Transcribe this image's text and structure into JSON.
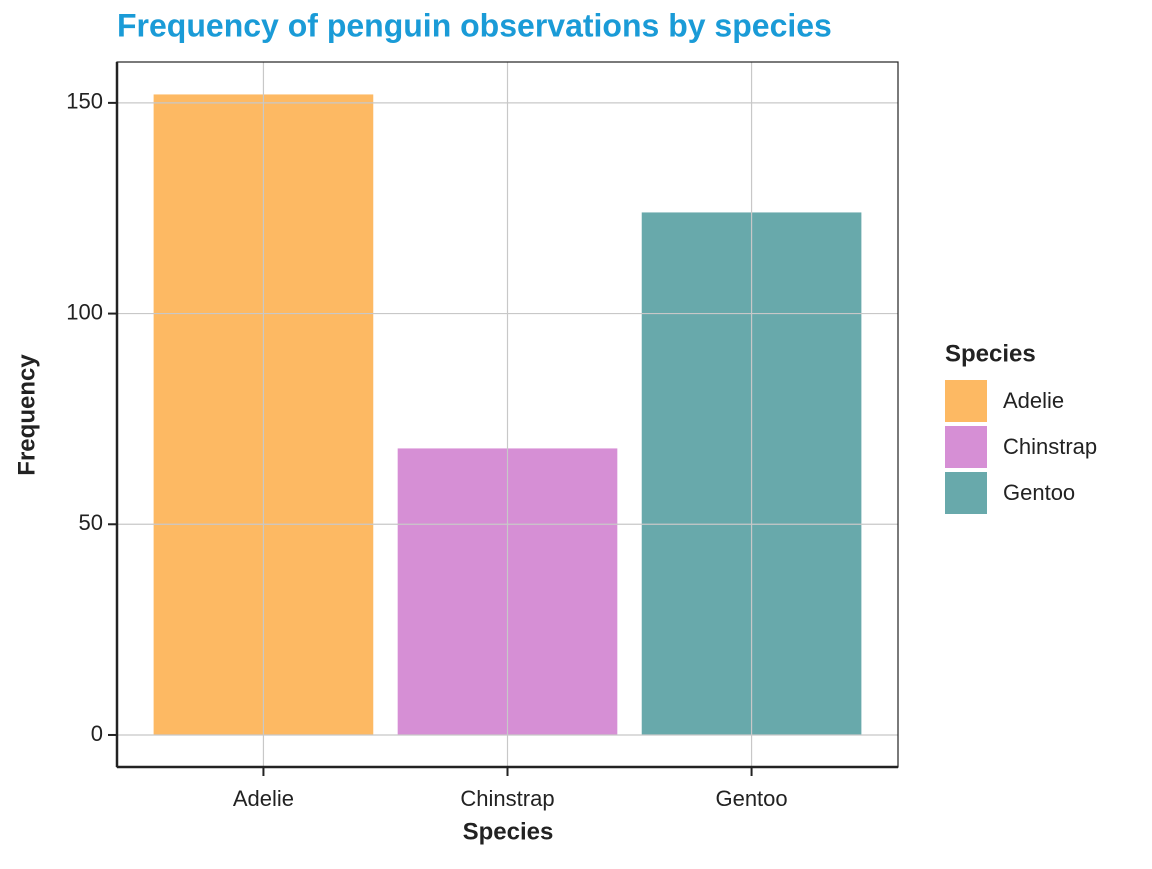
{
  "chart_data": {
    "type": "bar",
    "title": "Frequency of penguin observations by species",
    "x_label": "Species",
    "y_label": "Frequency",
    "legend_title": "Species",
    "categories": [
      "Adelie",
      "Chinstrap",
      "Gentoo"
    ],
    "values": [
      152,
      68,
      124
    ],
    "colors": [
      "#fdb55b",
      "#d489d3",
      "#60a4a7"
    ],
    "ylim": [
      -7.6,
      159.7
    ],
    "yticks": [
      0,
      50,
      100,
      150
    ],
    "grid": true,
    "legend": "right"
  }
}
